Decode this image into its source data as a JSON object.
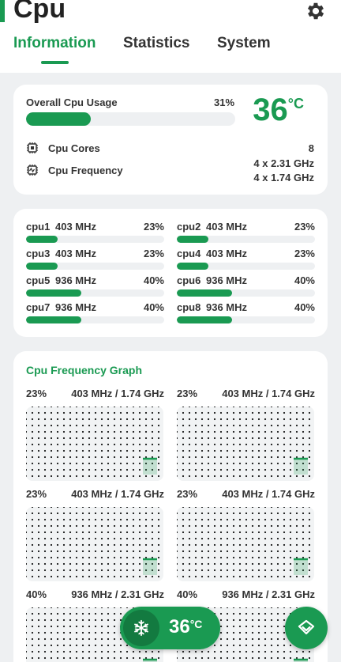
{
  "app": {
    "title": "Cpu"
  },
  "tabs": [
    "Information",
    "Statistics",
    "System"
  ],
  "colors": {
    "accent": "#1a9a52",
    "background": "#eef0f2",
    "card": "#ffffff"
  },
  "overview": {
    "usage_label": "Overall Cpu Usage",
    "usage_value": "31%",
    "usage_fraction": 0.31,
    "temperature": "36",
    "temperature_unit": "°C",
    "cores_label": "Cpu Cores",
    "cores_value": "8",
    "freq_label": "Cpu Frequency",
    "freq_values": [
      "4 x 2.31 GHz",
      "4 x 1.74 GHz"
    ]
  },
  "cores": [
    {
      "name": "cpu1",
      "freq": "403 MHz",
      "usage": "23%",
      "fraction": 0.23
    },
    {
      "name": "cpu2",
      "freq": "403 MHz",
      "usage": "23%",
      "fraction": 0.23
    },
    {
      "name": "cpu3",
      "freq": "403 MHz",
      "usage": "23%",
      "fraction": 0.23
    },
    {
      "name": "cpu4",
      "freq": "403 MHz",
      "usage": "23%",
      "fraction": 0.23
    },
    {
      "name": "cpu5",
      "freq": "936 MHz",
      "usage": "40%",
      "fraction": 0.4
    },
    {
      "name": "cpu6",
      "freq": "936 MHz",
      "usage": "40%",
      "fraction": 0.4
    },
    {
      "name": "cpu7",
      "freq": "936 MHz",
      "usage": "40%",
      "fraction": 0.4
    },
    {
      "name": "cpu8",
      "freq": "936 MHz",
      "usage": "40%",
      "fraction": 0.4
    }
  ],
  "graph": {
    "title": "Cpu Frequency Graph",
    "panels": [
      {
        "usage": "23%",
        "freq": "403 MHz / 1.74 GHz"
      },
      {
        "usage": "23%",
        "freq": "403 MHz / 1.74 GHz"
      },
      {
        "usage": "23%",
        "freq": "403 MHz / 1.74 GHz"
      },
      {
        "usage": "23%",
        "freq": "403 MHz / 1.74 GHz"
      },
      {
        "usage": "40%",
        "freq": "936 MHz / 2.31 GHz"
      },
      {
        "usage": "40%",
        "freq": "936 MHz / 2.31 GHz"
      }
    ]
  },
  "fab": {
    "temperature": "36",
    "temperature_unit": "°C",
    "icon": "snowflake-icon",
    "scroll_icon": "chevron-down-icon"
  },
  "icons": {
    "settings": "gear-icon",
    "cores": "chip-icon",
    "frequency": "cpu-frequency-icon"
  }
}
